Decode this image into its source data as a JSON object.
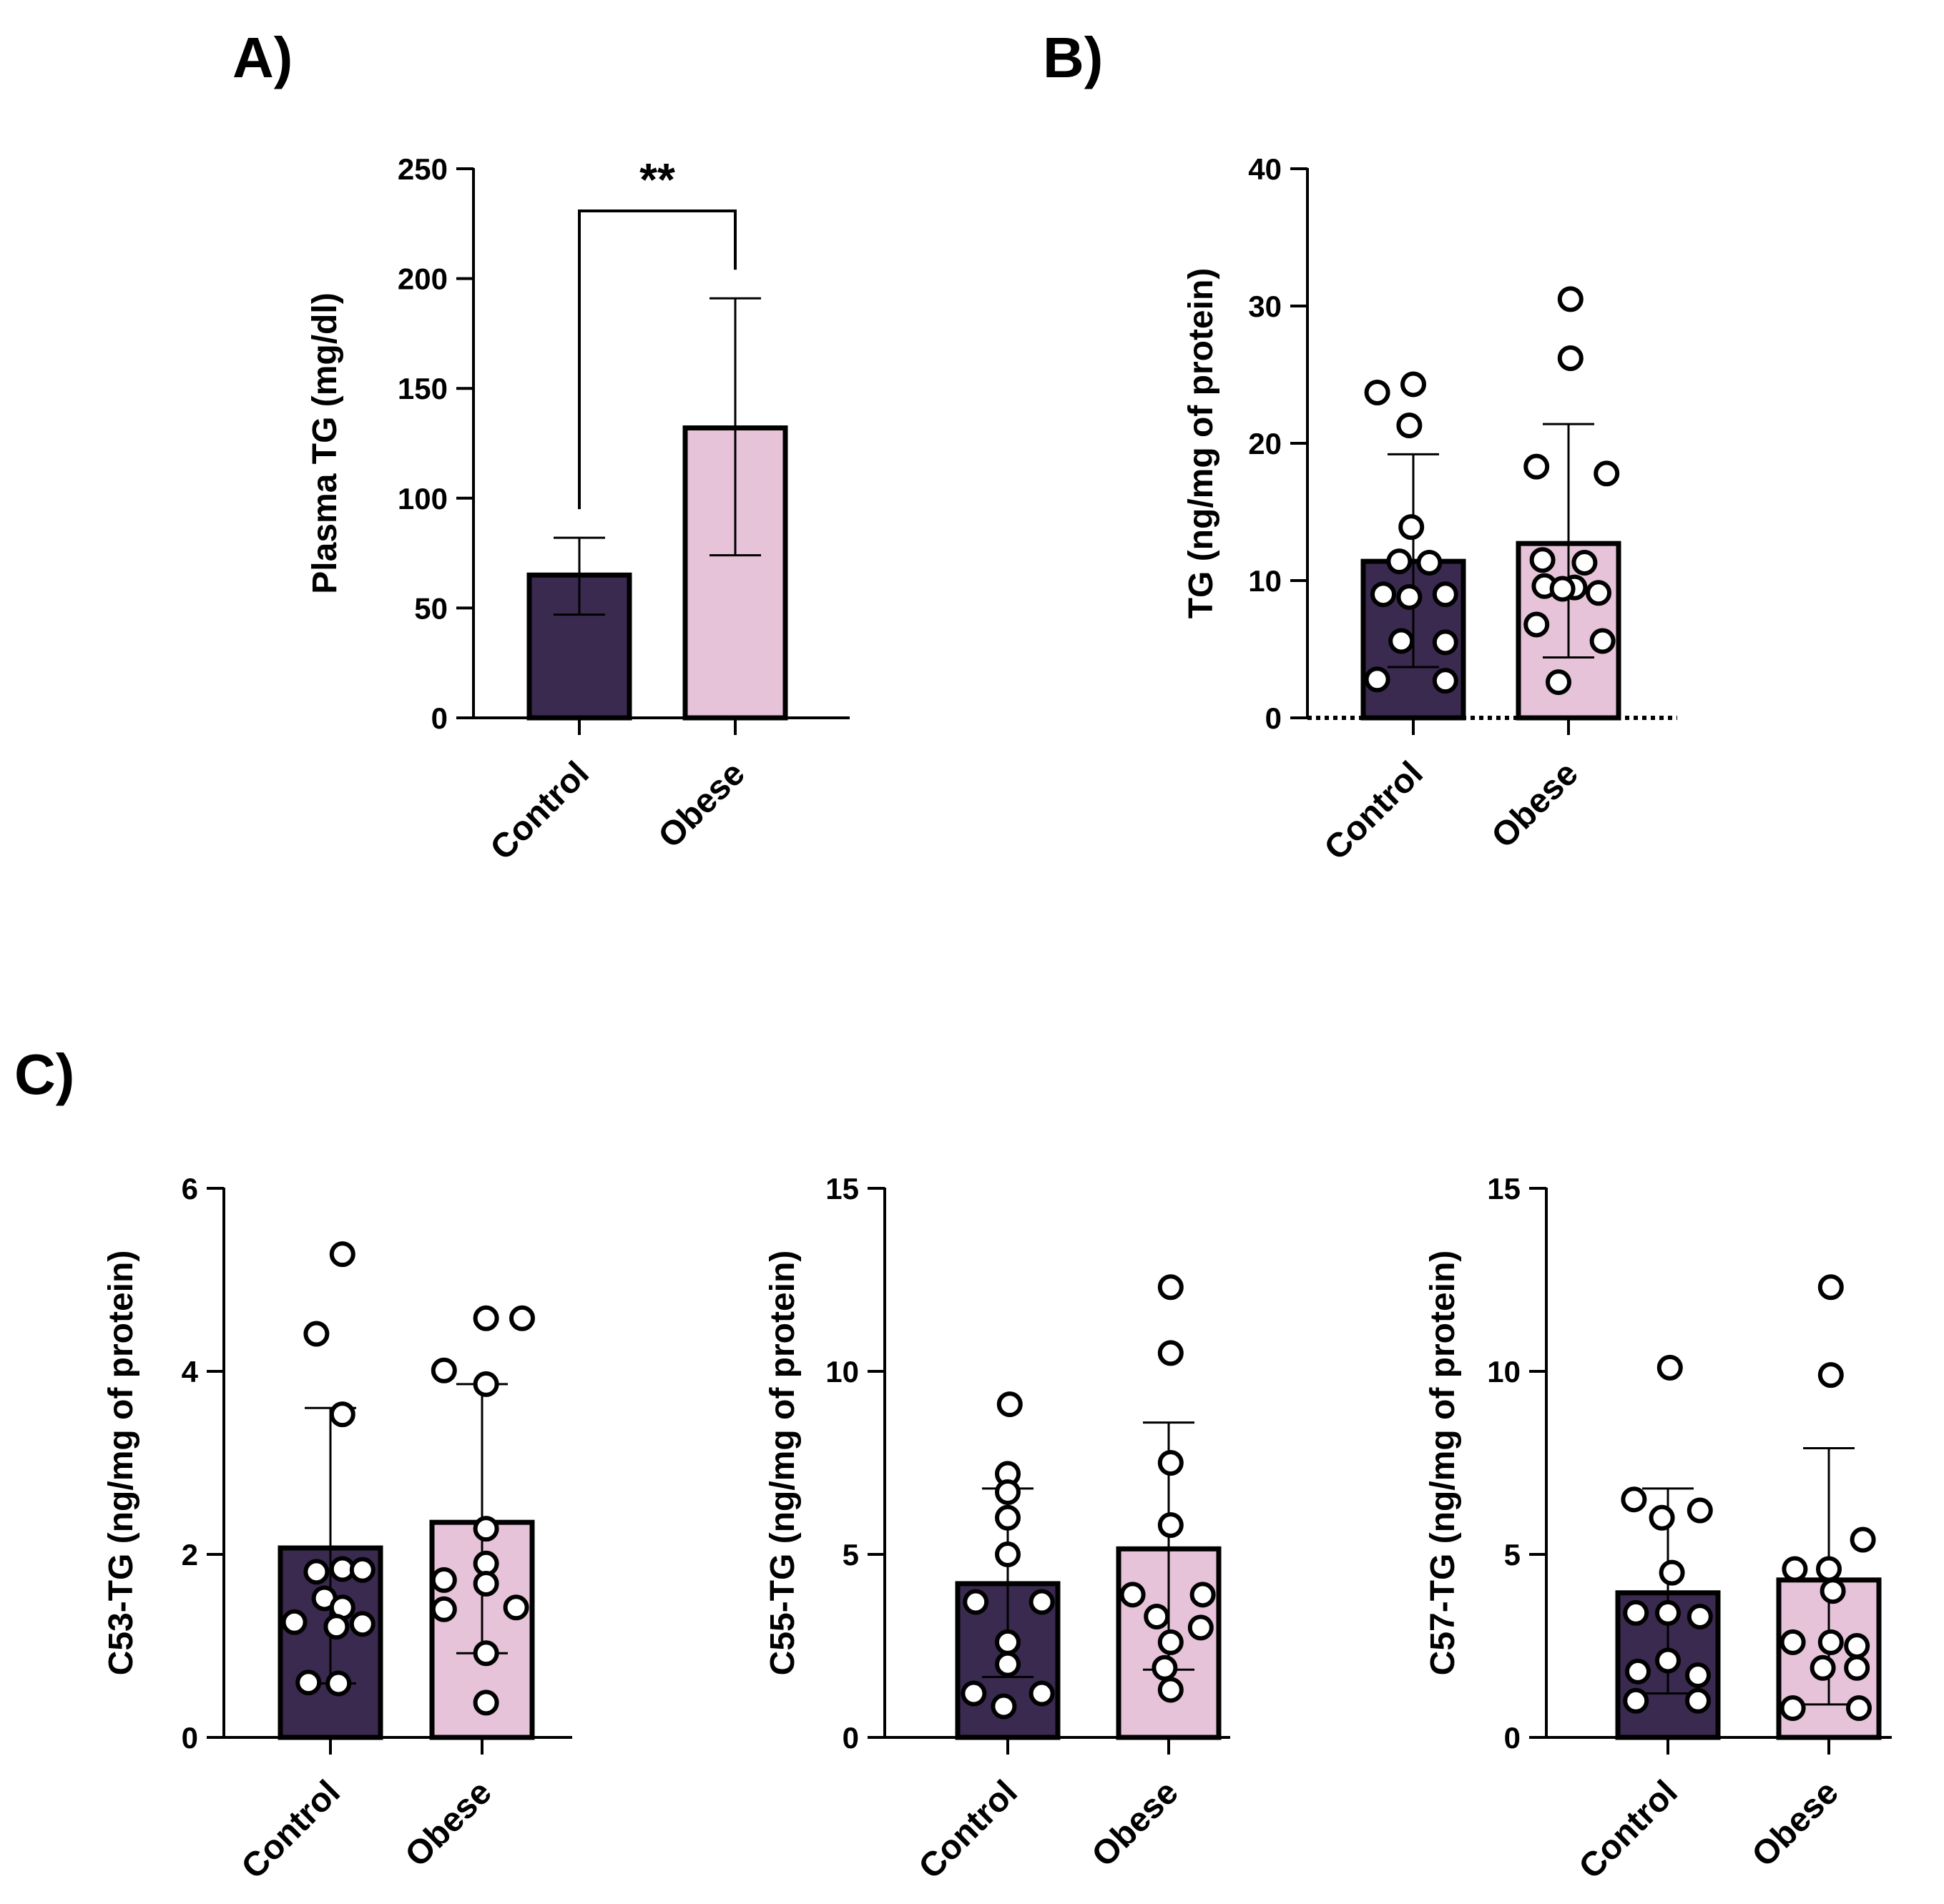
{
  "colors": {
    "control": "#3a2a4f",
    "obese": "#e6c3d8",
    "stroke": "#000000",
    "point_fill": "#ffffff"
  },
  "chart_data": [
    {
      "id": "A",
      "panel_label": "A)",
      "type": "bar",
      "ylabel": "Plasma TG (mg/dl)",
      "ylim": [
        0,
        250
      ],
      "yticks": [
        "0",
        "50",
        "100",
        "150",
        "200",
        "250"
      ],
      "categories": [
        "Control",
        "Obese"
      ],
      "values": [
        65,
        132
      ],
      "error_low": [
        47,
        74
      ],
      "error_high": [
        82,
        191
      ],
      "points": [
        [],
        []
      ],
      "significance": {
        "label": "**",
        "between": [
          0,
          1
        ]
      },
      "zero_line_dotted": false
    },
    {
      "id": "B",
      "panel_label": "B)",
      "type": "bar",
      "ylabel": "TG (ng/mg of protein)",
      "ylim": [
        0,
        40
      ],
      "yticks": [
        "0",
        "10",
        "20",
        "30",
        "40"
      ],
      "categories": [
        "Control",
        "Obese"
      ],
      "values": [
        11.4,
        12.7
      ],
      "error_low": [
        3.7,
        4.4
      ],
      "error_high": [
        19.2,
        21.4
      ],
      "points": [
        [
          [
            -0.36,
            23.7
          ],
          [
            0.0,
            24.3
          ],
          [
            -0.04,
            21.3
          ],
          [
            -0.02,
            13.9
          ],
          [
            -0.14,
            11.4
          ],
          [
            0.16,
            11.3
          ],
          [
            -0.3,
            9.0
          ],
          [
            0.32,
            9.0
          ],
          [
            -0.04,
            8.8
          ],
          [
            -0.12,
            5.6
          ],
          [
            0.32,
            5.5
          ],
          [
            -0.36,
            2.8
          ],
          [
            0.32,
            2.7
          ]
        ],
        [
          [
            0.02,
            30.5
          ],
          [
            0.02,
            26.2
          ],
          [
            -0.32,
            18.3
          ],
          [
            0.38,
            17.8
          ],
          [
            -0.26,
            11.5
          ],
          [
            0.16,
            11.3
          ],
          [
            -0.24,
            9.6
          ],
          [
            0.06,
            9.5
          ],
          [
            -0.06,
            9.4
          ],
          [
            0.3,
            9.1
          ],
          [
            -0.32,
            6.8
          ],
          [
            0.34,
            5.6
          ],
          [
            -0.1,
            2.6
          ]
        ]
      ],
      "significance": null,
      "zero_line_dotted": true
    },
    {
      "id": "C1",
      "panel_label": "C)",
      "type": "bar",
      "ylabel": "C53-TG (ng/mg of protein)",
      "ylim": [
        0,
        6
      ],
      "yticks": [
        "0",
        "2",
        "4",
        "6"
      ],
      "categories": [
        "Control",
        "Obese"
      ],
      "values": [
        2.07,
        2.35
      ],
      "error_low": [
        0.59,
        0.92
      ],
      "error_high": [
        3.6,
        3.86
      ],
      "points": [
        [
          [
            0.12,
            5.28
          ],
          [
            -0.14,
            4.41
          ],
          [
            0.12,
            3.53
          ],
          [
            -0.14,
            1.81
          ],
          [
            0.12,
            1.84
          ],
          [
            0.32,
            1.83
          ],
          [
            -0.06,
            1.52
          ],
          [
            0.12,
            1.42
          ],
          [
            -0.36,
            1.26
          ],
          [
            0.06,
            1.21
          ],
          [
            0.32,
            1.24
          ],
          [
            -0.22,
            0.6
          ],
          [
            0.08,
            0.59
          ]
        ],
        [
          [
            0.04,
            4.58
          ],
          [
            0.4,
            4.58
          ],
          [
            -0.38,
            4.01
          ],
          [
            0.04,
            3.86
          ],
          [
            0.04,
            2.28
          ],
          [
            -0.38,
            1.72
          ],
          [
            0.04,
            1.9
          ],
          [
            0.04,
            1.68
          ],
          [
            -0.38,
            1.4
          ],
          [
            0.34,
            1.42
          ],
          [
            0.04,
            0.92
          ],
          [
            0.04,
            0.38
          ]
        ]
      ],
      "significance": null,
      "zero_line_dotted": false
    },
    {
      "id": "C2",
      "panel_label": "",
      "type": "bar",
      "ylabel": "C55-TG (ng/mg of protein)",
      "ylim": [
        0,
        15
      ],
      "yticks": [
        "0",
        "5",
        "10",
        "15"
      ],
      "categories": [
        "Control",
        "Obese"
      ],
      "values": [
        4.2,
        5.15
      ],
      "error_low": [
        1.65,
        1.85
      ],
      "error_high": [
        6.8,
        8.6
      ],
      "points": [
        [
          [
            0.02,
            9.1
          ],
          [
            0.0,
            7.2
          ],
          [
            0.0,
            6.7
          ],
          [
            0.0,
            6.0
          ],
          [
            0.0,
            5.0
          ],
          [
            -0.32,
            3.7
          ],
          [
            0.34,
            3.7
          ],
          [
            0.0,
            2.6
          ],
          [
            0.0,
            2.0
          ],
          [
            -0.34,
            1.2
          ],
          [
            0.34,
            1.2
          ],
          [
            -0.04,
            0.85
          ]
        ],
        [
          [
            0.02,
            12.3
          ],
          [
            0.02,
            10.5
          ],
          [
            0.02,
            7.5
          ],
          [
            0.02,
            5.8
          ],
          [
            -0.36,
            3.9
          ],
          [
            0.34,
            3.9
          ],
          [
            -0.12,
            3.3
          ],
          [
            0.32,
            3.0
          ],
          [
            0.02,
            2.6
          ],
          [
            -0.04,
            1.9
          ],
          [
            0.02,
            1.3
          ]
        ]
      ],
      "significance": null,
      "zero_line_dotted": false
    },
    {
      "id": "C3",
      "panel_label": "",
      "type": "bar",
      "ylabel": "C57-TG (ng/mg of protein)",
      "ylim": [
        0,
        15
      ],
      "yticks": [
        "0",
        "5",
        "10",
        "15"
      ],
      "categories": [
        "Control",
        "Obese"
      ],
      "values": [
        3.95,
        4.3
      ],
      "error_low": [
        1.2,
        0.9
      ],
      "error_high": [
        6.8,
        7.9
      ],
      "points": [
        [
          [
            0.02,
            10.1
          ],
          [
            -0.34,
            6.5
          ],
          [
            0.32,
            6.2
          ],
          [
            -0.06,
            6.0
          ],
          [
            0.04,
            4.5
          ],
          [
            -0.32,
            3.4
          ],
          [
            0.32,
            3.3
          ],
          [
            0.0,
            3.4
          ],
          [
            0.0,
            2.1
          ],
          [
            -0.3,
            1.8
          ],
          [
            0.3,
            1.7
          ],
          [
            -0.32,
            1.0
          ],
          [
            0.3,
            1.0
          ]
        ],
        [
          [
            0.02,
            12.3
          ],
          [
            0.02,
            9.9
          ],
          [
            0.34,
            5.4
          ],
          [
            -0.34,
            4.6
          ],
          [
            0.0,
            4.6
          ],
          [
            0.04,
            4.0
          ],
          [
            -0.36,
            2.6
          ],
          [
            0.02,
            2.6
          ],
          [
            0.28,
            2.5
          ],
          [
            -0.06,
            1.9
          ],
          [
            0.28,
            1.9
          ],
          [
            -0.36,
            0.8
          ],
          [
            0.3,
            0.8
          ]
        ]
      ],
      "significance": null,
      "zero_line_dotted": false
    }
  ]
}
